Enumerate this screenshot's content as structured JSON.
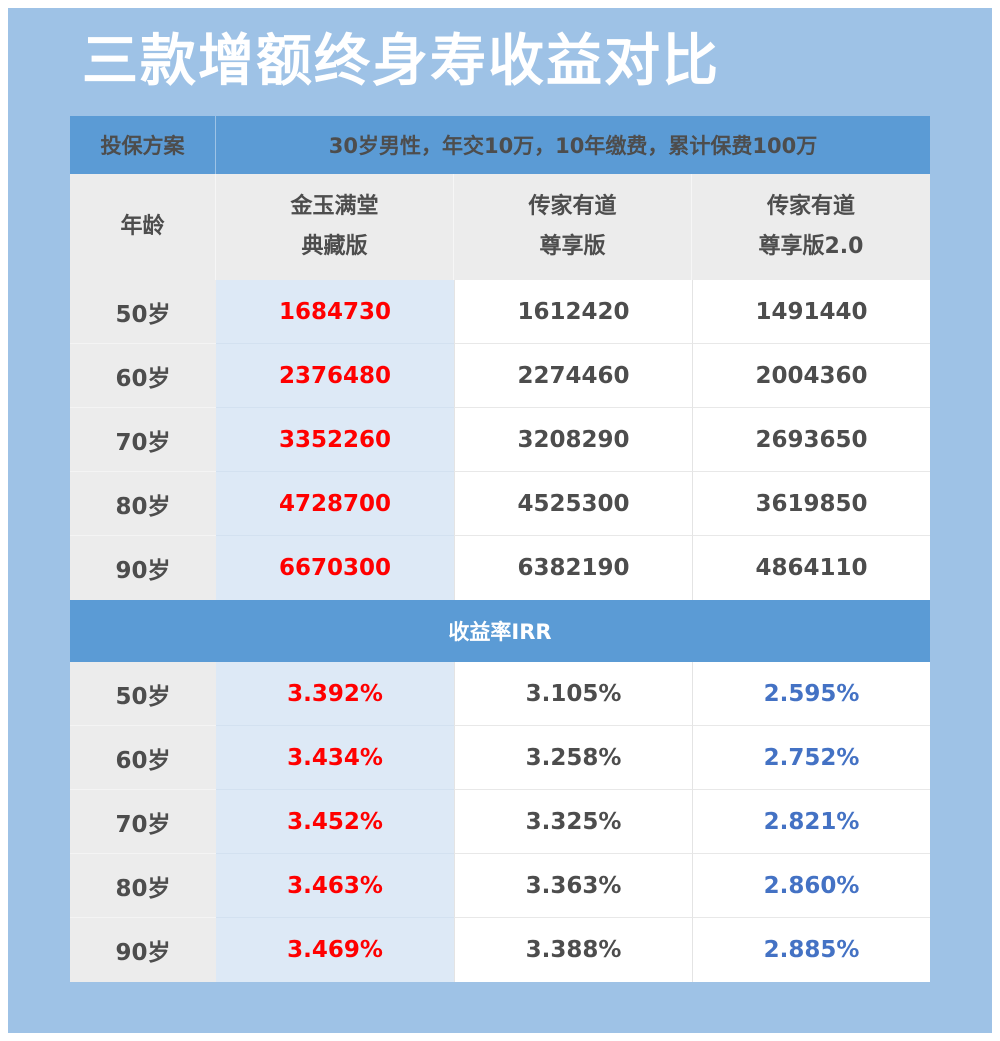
{
  "title": "三款增额终身寿收益对比",
  "plan": {
    "label": "投保方案",
    "desc": "30岁男性，年交10万，10年缴费，累计保费100万"
  },
  "header": {
    "age": "年龄",
    "products": [
      {
        "line1": "金玉满堂",
        "line2": "典藏版"
      },
      {
        "line1": "传家有道",
        "line2": "尊享版"
      },
      {
        "line1": "传家有道",
        "line2": "尊享版2.0"
      }
    ]
  },
  "cash_rows": [
    {
      "age": "50岁",
      "values": [
        "1684730",
        "1612420",
        "1491440"
      ]
    },
    {
      "age": "60岁",
      "values": [
        "2376480",
        "2274460",
        "2004360"
      ]
    },
    {
      "age": "70岁",
      "values": [
        "3352260",
        "3208290",
        "2693650"
      ]
    },
    {
      "age": "80岁",
      "values": [
        "4728700",
        "4525300",
        "3619850"
      ]
    },
    {
      "age": "90岁",
      "values": [
        "6670300",
        "6382190",
        "4864110"
      ]
    }
  ],
  "irr_section": "收益率IRR",
  "irr_rows": [
    {
      "age": "50岁",
      "values": [
        "3.392%",
        "3.105%",
        "2.595%"
      ]
    },
    {
      "age": "60岁",
      "values": [
        "3.434%",
        "3.258%",
        "2.752%"
      ]
    },
    {
      "age": "70岁",
      "values": [
        "3.452%",
        "3.325%",
        "2.821%"
      ]
    },
    {
      "age": "80岁",
      "values": [
        "3.463%",
        "3.363%",
        "2.860%"
      ]
    },
    {
      "age": "90岁",
      "values": [
        "3.469%",
        "3.388%",
        "2.885%"
      ]
    }
  ],
  "colors": {
    "frame": "#9ec2e6",
    "band": "#5b9bd5",
    "highlight_text": "#ff0000",
    "irr_v20_text": "#4472c4",
    "highlight_column": "#dde9f6"
  }
}
